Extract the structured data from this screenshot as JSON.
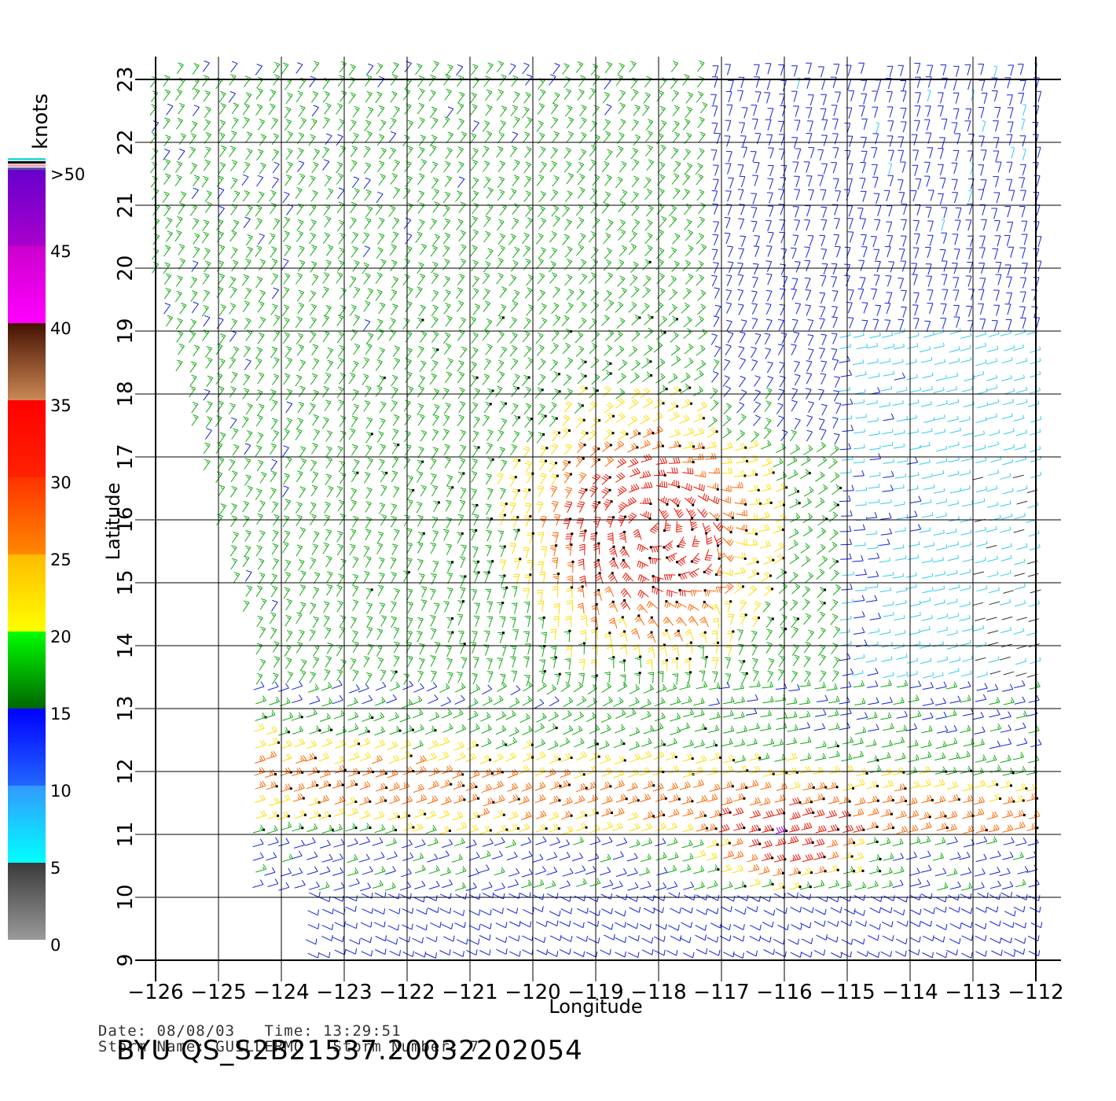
{
  "map": {
    "x_axis_label": "Longitude",
    "y_axis_label": "Latitude",
    "lon_ticks": [
      "−126",
      "−125",
      "−124",
      "−123",
      "−122",
      "−121",
      "−120",
      "−119",
      "−118",
      "−117",
      "−116",
      "−115",
      "−114",
      "−113",
      "−112"
    ],
    "lat_ticks": [
      "9",
      "10",
      "11",
      "12",
      "13",
      "14",
      "15",
      "16",
      "17",
      "18",
      "19",
      "20",
      "21",
      "22",
      "23"
    ],
    "lon_range": [
      -126,
      -111.6
    ],
    "lat_range": [
      9,
      23
    ],
    "storm_center": {
      "lon": -118.2,
      "lat": 15.9
    },
    "grid": true
  },
  "legend": {
    "units": "knots",
    "labels": [
      ">50",
      "45",
      "40",
      "35",
      "30",
      "25",
      "20",
      "15",
      "10",
      "5",
      "0"
    ],
    "bands": [
      {
        "from": 0,
        "to": 5,
        "top": "#3a3a3a",
        "bottom": "#9a9a9a"
      },
      {
        "from": 5,
        "to": 10,
        "top": "#3399ff",
        "bottom": "#00ffff"
      },
      {
        "from": 10,
        "to": 15,
        "top": "#0000ff",
        "bottom": "#2266ff"
      },
      {
        "from": 15,
        "to": 20,
        "top": "#00ff00",
        "bottom": "#006600"
      },
      {
        "from": 20,
        "to": 25,
        "top": "#ffbb00",
        "bottom": "#ffff00"
      },
      {
        "from": 25,
        "to": 30,
        "top": "#ff3300",
        "bottom": "#ff8800"
      },
      {
        "from": 30,
        "to": 35,
        "top": "#ff0000",
        "bottom": "#ff2200"
      },
      {
        "from": 35,
        "to": 40,
        "top": "#441100",
        "bottom": "#cc8855"
      },
      {
        "from": 40,
        "to": 45,
        "top": "#cc00cc",
        "bottom": "#ff00ff"
      },
      {
        "from": 45,
        "to": 50,
        "top": "#6600cc",
        "bottom": "#aa00cc"
      }
    ],
    "cap_colors": [
      "#33dddd",
      "#000000",
      "#ff99aa",
      "#5555aa"
    ]
  },
  "info": {
    "date_label": "Date:",
    "date_value": "08/08/03",
    "time_label": "Time:",
    "time_value": "13:29:51",
    "storm_name_label": "Storm Name:",
    "storm_name_value": "GUILLERMO",
    "storm_number_label": "Storm Number:",
    "storm_number_value": "7"
  },
  "footer": {
    "title": "BYU QS_S2B21537.20032202054"
  },
  "colors": {
    "grid": "#000000",
    "speed_0_5": "#333333",
    "speed_5_10": "#33ccee",
    "speed_10_15": "#1122dd",
    "speed_15_20": "#11aa11",
    "speed_20_25": "#ffdd00",
    "speed_25_30": "#ff6600",
    "speed_30_35": "#ee1100",
    "speed_45_50": "#aa00cc"
  }
}
